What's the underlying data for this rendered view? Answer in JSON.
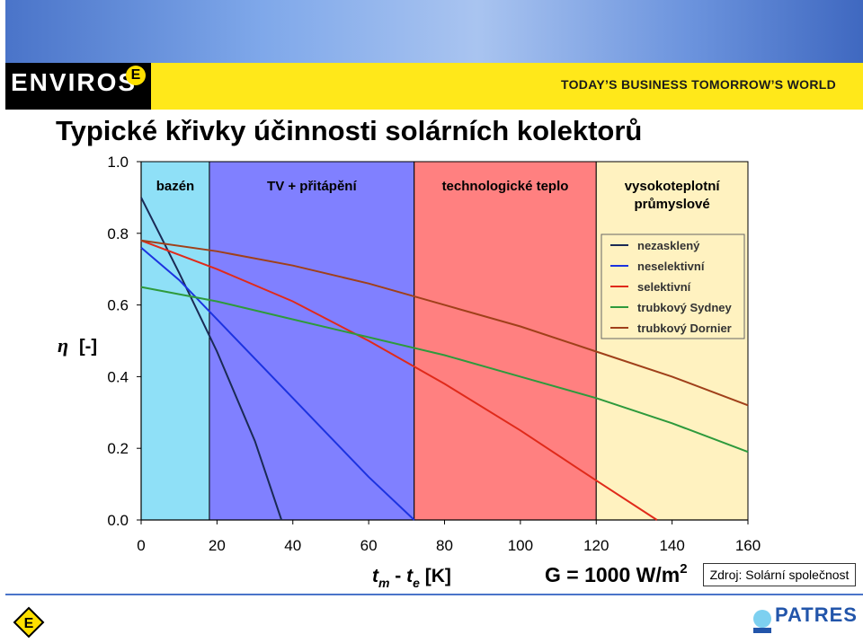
{
  "header": {
    "logo_text": "ENVIROS",
    "logo_mark": "E",
    "tagline": "TODAY’S BUSINESS TOMORROW’S WORLD"
  },
  "title": "Typické křivky účinnosti solárních kolektorů",
  "source": "Zdroj: Solární společnost",
  "footer": {
    "logo_mark": "E",
    "patres_text": "PATRES"
  },
  "colors": {
    "bazen": "#8fe0f7",
    "tv": "#8080ff",
    "tech": "#ff8080",
    "vysoko": "#fff2c0"
  },
  "chart_data": {
    "type": "line",
    "xlabel_t": "t",
    "xlabel_m": "m",
    "xlabel_dash": " - ",
    "xlabel_e": "e",
    "xlabel_unit": " [K]",
    "ylabel_symbol": "η",
    "ylabel_unit": "[-]",
    "condition": "G = 1000 W/m",
    "condition_exp": "2",
    "xlim": [
      0,
      160
    ],
    "ylim": [
      0,
      1.0
    ],
    "xticks": [
      "0",
      "20",
      "40",
      "60",
      "80",
      "100",
      "120",
      "140",
      "160"
    ],
    "yticks": [
      "0.0",
      "0.2",
      "0.4",
      "0.6",
      "0.8",
      "1.0"
    ],
    "regions": [
      {
        "label": [
          "bazén"
        ],
        "x0": 0,
        "x1": 18,
        "color": "#8fe0f7"
      },
      {
        "label": [
          "TV + přitápění"
        ],
        "x0": 18,
        "x1": 72,
        "color": "#8080ff"
      },
      {
        "label": [
          "technologické teplo"
        ],
        "x0": 72,
        "x1": 120,
        "color": "#ff8080"
      },
      {
        "label": [
          "vysokoteplotní",
          "průmyslové"
        ],
        "x0": 120,
        "x1": 160,
        "color": "#fff2c0"
      }
    ],
    "legend_position": "right",
    "series": [
      {
        "name": "nezasklený",
        "color": "#1a2a55",
        "points": [
          [
            0,
            0.9
          ],
          [
            10,
            0.69
          ],
          [
            20,
            0.47
          ],
          [
            30,
            0.22
          ],
          [
            37,
            0.0
          ]
        ]
      },
      {
        "name": "neselektivní",
        "color": "#1c33e0",
        "points": [
          [
            0,
            0.76
          ],
          [
            10,
            0.67
          ],
          [
            20,
            0.56
          ],
          [
            30,
            0.45
          ],
          [
            40,
            0.34
          ],
          [
            50,
            0.23
          ],
          [
            60,
            0.12
          ],
          [
            72,
            0.0
          ]
        ]
      },
      {
        "name": "selektivní",
        "color": "#e02a1a",
        "points": [
          [
            0,
            0.78
          ],
          [
            20,
            0.7
          ],
          [
            40,
            0.61
          ],
          [
            60,
            0.5
          ],
          [
            80,
            0.38
          ],
          [
            100,
            0.25
          ],
          [
            120,
            0.11
          ],
          [
            136,
            0.0
          ]
        ]
      },
      {
        "name": "trubkový Sydney",
        "color": "#2e9a3c",
        "points": [
          [
            0,
            0.65
          ],
          [
            20,
            0.61
          ],
          [
            40,
            0.56
          ],
          [
            60,
            0.51
          ],
          [
            80,
            0.46
          ],
          [
            100,
            0.4
          ],
          [
            120,
            0.34
          ],
          [
            140,
            0.27
          ],
          [
            160,
            0.19
          ]
        ]
      },
      {
        "name": "trubkový Dornier",
        "color": "#a0401a",
        "points": [
          [
            0,
            0.78
          ],
          [
            20,
            0.75
          ],
          [
            40,
            0.71
          ],
          [
            60,
            0.66
          ],
          [
            80,
            0.6
          ],
          [
            100,
            0.54
          ],
          [
            120,
            0.47
          ],
          [
            140,
            0.4
          ],
          [
            160,
            0.32
          ]
        ]
      }
    ]
  }
}
